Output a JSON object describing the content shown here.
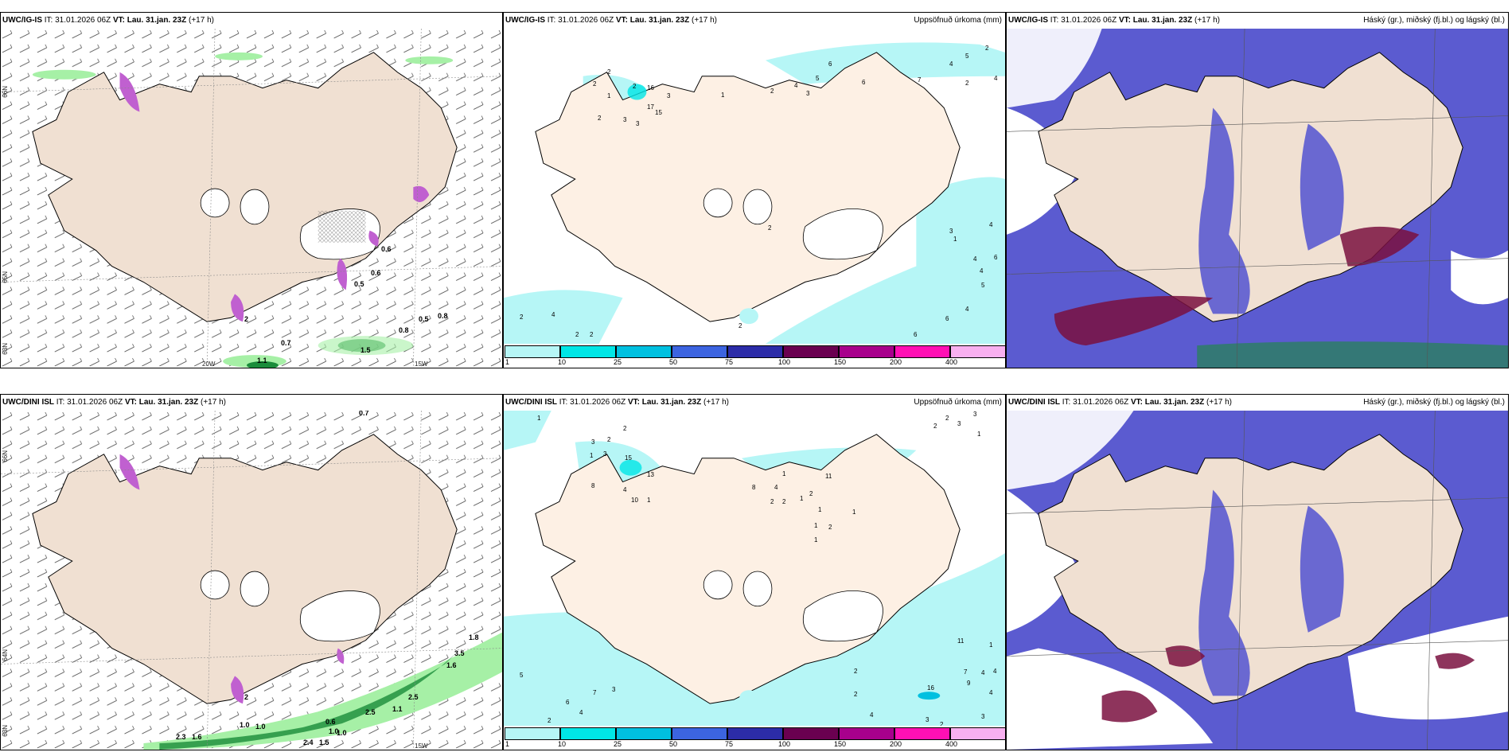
{
  "panels": {
    "p1": {
      "title_model": "UWC/IG-IS",
      "it": "IT: 31.01.2026 06Z",
      "vt_label": "VT:",
      "vt": "Lau. 31.jan. 23Z",
      "lead": "(+17 h)",
      "right": ""
    },
    "p2": {
      "title_model": "UWC/IG-IS",
      "it": "IT: 31.01.2026 06Z",
      "vt_label": "VT:",
      "vt": "Lau. 31.jan. 23Z",
      "lead": "(+17 h)",
      "right": "Uppsöfnuð úrkoma (mm)"
    },
    "p3": {
      "title_model": "UWC/IG-IS",
      "it": "IT: 31.01.2026 06Z",
      "vt_label": "VT:",
      "vt": "Lau. 31.jan. 23Z",
      "lead": "(+17 h)",
      "right": "Háský (gr.), miðský (fj.bl.) og lágský (bl.)"
    },
    "p4": {
      "title_model": "UWC/DINI ISL",
      "it": "IT: 31.01.2026 06Z",
      "vt_label": "VT:",
      "vt": "Lau. 31.jan. 23Z",
      "lead": "(+17 h)",
      "right": ""
    },
    "p5": {
      "title_model": "UWC/DINI ISL",
      "it": "IT: 31.01.2026 06Z",
      "vt_label": "VT:",
      "vt": "Lau. 31.jan. 23Z",
      "lead": "(+17 h)",
      "right": "Uppsöfnuð úrkoma (mm)"
    },
    "p6": {
      "title_model": "UWC/DINI ISL",
      "it": "IT: 31.01.2026 06Z",
      "vt_label": "VT:",
      "vt": "Lau. 31.jan. 23Z",
      "lead": "(+17 h)",
      "right": "Háský (gr.), miðský (fj.bl.) og lágský (bl.)"
    }
  },
  "axes": {
    "lat66": "66N",
    "lat64": "64N",
    "lat65": "65N",
    "lat63": "63N",
    "lon20": "20W",
    "lon15": "15W"
  },
  "colorbar": {
    "labels": [
      "1",
      "10",
      "25",
      "50",
      "75",
      "100",
      "150",
      "200",
      "400"
    ],
    "colors": [
      "#b6f6f6",
      "#00e6e6",
      "#00c0e0",
      "#3c64e0",
      "#2c2ca8",
      "#6a0050",
      "#a8008c",
      "#ff10b4",
      "#f8b0f0"
    ]
  },
  "p1_labels": [
    "0.6",
    "0.6",
    "0.5",
    "0.8",
    "0.8",
    "0.5",
    "0.7",
    "1.5",
    "1.1",
    "2"
  ],
  "p2_labels": [
    "1",
    "2",
    "2",
    "2",
    "3",
    "2",
    "4",
    "2",
    "4",
    "2",
    "3",
    "2",
    "16",
    "3",
    "17",
    "15",
    "3",
    "2",
    "2",
    "2",
    "1",
    "2",
    "4",
    "3",
    "5",
    "6",
    "6",
    "7",
    "4",
    "5",
    "2",
    "2",
    "3",
    "1",
    "4",
    "4",
    "4",
    "6",
    "5",
    "4",
    "6",
    "6"
  ],
  "p4_labels": [
    "0.7",
    "1.0",
    "1.0",
    "0.6",
    "1.0",
    "2.5",
    "1.1",
    "2.5",
    "1.6",
    "2.3",
    "1.6",
    "2.4",
    "1.5",
    "3.5",
    "2",
    "1.0",
    "1.8"
  ],
  "p5_labels": [
    "1",
    "2",
    "3",
    "2",
    "1",
    "3",
    "15",
    "13",
    "8",
    "4",
    "10",
    "1",
    "8",
    "4",
    "1",
    "2",
    "2",
    "1",
    "2",
    "1",
    "1",
    "1",
    "2",
    "11",
    "1",
    "2",
    "3",
    "1",
    "3",
    "2",
    "11",
    "4",
    "4",
    "7",
    "9",
    "16",
    "4",
    "2",
    "2",
    "3",
    "4",
    "3",
    "2",
    "5",
    "6",
    "4",
    "7",
    "3",
    "2",
    "1"
  ],
  "colors": {
    "land": "#f0e0d2",
    "land_alt": "#fdf0e4",
    "snowfree": "#ffffff",
    "precip_green": "#a6f0a6",
    "precip_dark": "#1a8c3a",
    "hail": "#d070d8",
    "cloud_high": "#5b5bd0",
    "cloud_mid": "#7a1040",
    "cloud_low": "#3ccbe0"
  }
}
